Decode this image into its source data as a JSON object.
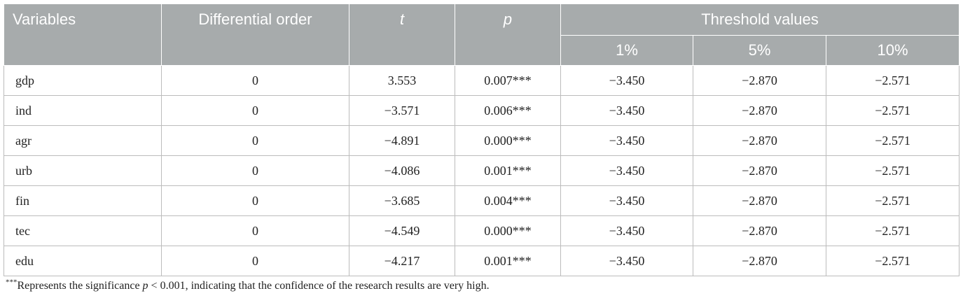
{
  "table": {
    "headers": {
      "variables": "Variables",
      "differential_order": "Differential order",
      "t": "t",
      "p": "p",
      "threshold": "Threshold values",
      "sub": [
        "1%",
        "5%",
        "10%"
      ]
    },
    "rows": [
      {
        "var": "gdp",
        "order": "0",
        "t": "3.553",
        "p": "0.007***",
        "v1": "−3.450",
        "v5": "−2.870",
        "v10": "−2.571"
      },
      {
        "var": "ind",
        "order": "0",
        "t": "−3.571",
        "p": "0.006***",
        "v1": "−3.450",
        "v5": "−2.870",
        "v10": "−2.571"
      },
      {
        "var": "agr",
        "order": "0",
        "t": "−4.891",
        "p": "0.000***",
        "v1": "−3.450",
        "v5": "−2.870",
        "v10": "−2.571"
      },
      {
        "var": "urb",
        "order": "0",
        "t": "−4.086",
        "p": "0.001***",
        "v1": "−3.450",
        "v5": "−2.870",
        "v10": "−2.571"
      },
      {
        "var": "fin",
        "order": "0",
        "t": "−3.685",
        "p": "0.004***",
        "v1": "−3.450",
        "v5": "−2.870",
        "v10": "−2.571"
      },
      {
        "var": "tec",
        "order": "0",
        "t": "−4.549",
        "p": "0.000***",
        "v1": "−3.450",
        "v5": "−2.870",
        "v10": "−2.571"
      },
      {
        "var": "edu",
        "order": "0",
        "t": "−4.217",
        "p": "0.001***",
        "v1": "−3.450",
        "v5": "−2.870",
        "v10": "−2.571"
      }
    ]
  },
  "footnote": {
    "marker": "***",
    "text_before": "Represents the significance ",
    "p_symbol": "p",
    "text_after": " < 0.001, indicating that the confidence of the research results are very high."
  }
}
